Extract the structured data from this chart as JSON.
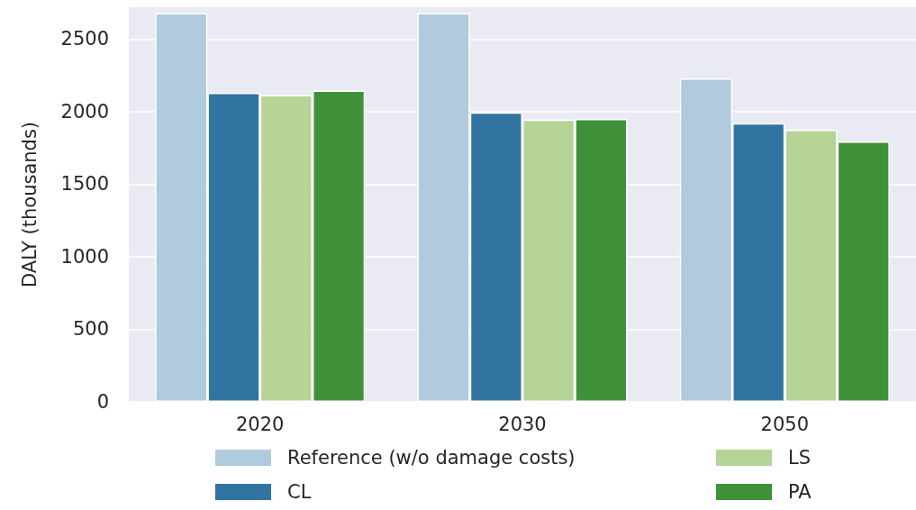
{
  "chart_data": {
    "type": "bar",
    "ylabel": "DALY (thousands)",
    "categories": [
      "2020",
      "2030",
      "2050"
    ],
    "series": [
      {
        "name": "Reference (w/o damage costs)",
        "color": "#afcbdd",
        "values": [
          2680,
          2680,
          2230
        ]
      },
      {
        "name": "CL",
        "color": "#3274a1",
        "values": [
          2130,
          1995,
          1920
        ]
      },
      {
        "name": "LS",
        "color": "#b5d495",
        "values": [
          2115,
          1945,
          1875
        ]
      },
      {
        "name": "PA",
        "color": "#3f923a",
        "values": [
          2145,
          1950,
          1795
        ]
      }
    ],
    "ylim": [
      0,
      2720
    ],
    "yticks": [
      0,
      500,
      1000,
      1500,
      2000,
      2500
    ],
    "grid": "y",
    "legend": "bottom"
  }
}
